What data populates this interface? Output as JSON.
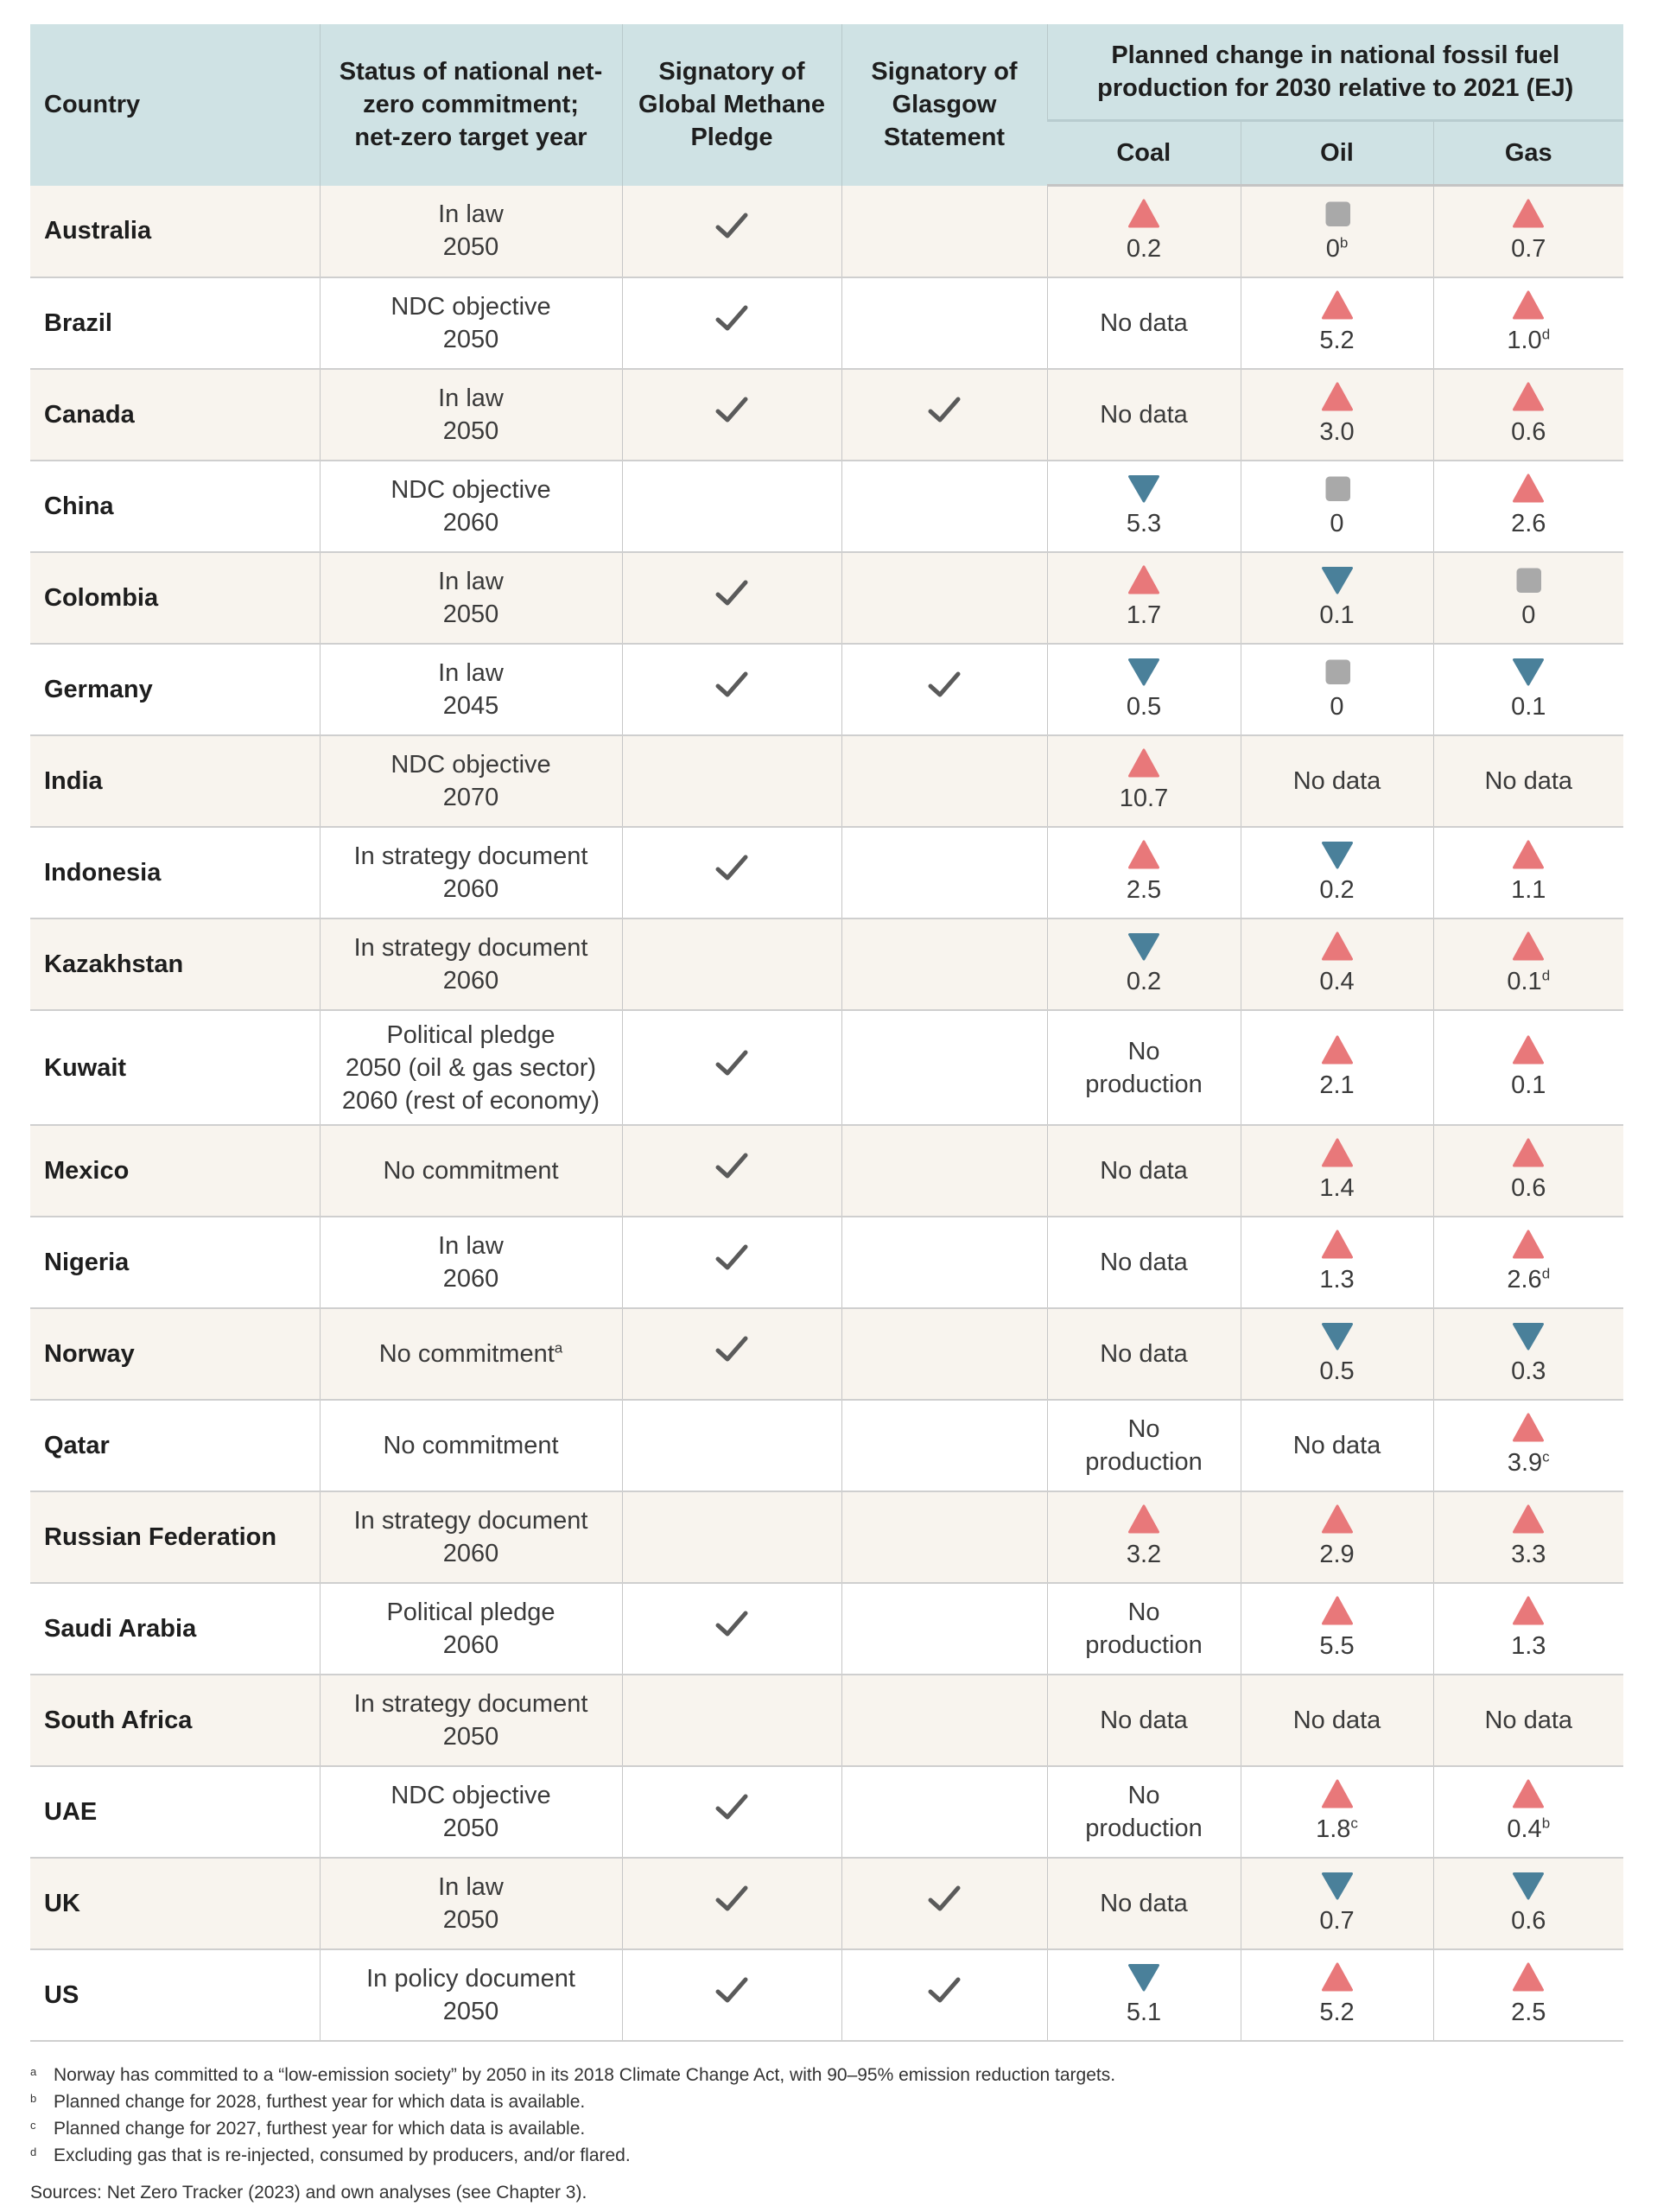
{
  "headers": {
    "country": "Country",
    "status": "Status of national net-zero commitment; net-zero target year",
    "methane": "Signatory of Global Methane Pledge",
    "glasgow": "Signatory of Glasgow Statement",
    "planned": "Planned change in national fossil fuel production for 2030 relative to 2021 (EJ)",
    "coal": "Coal",
    "oil": "Oil",
    "gas": "Gas"
  },
  "colors": {
    "increase": "#e8787a",
    "decrease": "#4a809a",
    "no_change": "#a9a9a9",
    "header_bg": "#cfe2e4",
    "alt_row_bg": "#f8f4ee"
  },
  "rows": [
    {
      "country": "Australia",
      "status": [
        "In law",
        "2050"
      ],
      "methane": true,
      "glasgow": false,
      "coal": {
        "dir": "up",
        "value": "0.2"
      },
      "oil": {
        "dir": "flat",
        "value": "0",
        "sup": "b"
      },
      "gas": {
        "dir": "up",
        "value": "0.7"
      }
    },
    {
      "country": "Brazil",
      "status": [
        "NDC objective",
        "2050"
      ],
      "methane": true,
      "glasgow": false,
      "coal": {
        "text": "No data"
      },
      "oil": {
        "dir": "up",
        "value": "5.2"
      },
      "gas": {
        "dir": "up",
        "value": "1.0",
        "sup": "d"
      }
    },
    {
      "country": "Canada",
      "status": [
        "In law",
        "2050"
      ],
      "methane": true,
      "glasgow": true,
      "coal": {
        "text": "No data"
      },
      "oil": {
        "dir": "up",
        "value": "3.0"
      },
      "gas": {
        "dir": "up",
        "value": "0.6"
      }
    },
    {
      "country": "China",
      "status": [
        "NDC objective",
        "2060"
      ],
      "methane": false,
      "glasgow": false,
      "coal": {
        "dir": "down",
        "value": "5.3"
      },
      "oil": {
        "dir": "flat",
        "value": "0"
      },
      "gas": {
        "dir": "up",
        "value": "2.6"
      }
    },
    {
      "country": "Colombia",
      "status": [
        "In law",
        "2050"
      ],
      "methane": true,
      "glasgow": false,
      "coal": {
        "dir": "up",
        "value": "1.7"
      },
      "oil": {
        "dir": "down",
        "value": "0.1"
      },
      "gas": {
        "dir": "flat",
        "value": "0"
      }
    },
    {
      "country": "Germany",
      "status": [
        "In law",
        "2045"
      ],
      "methane": true,
      "glasgow": true,
      "coal": {
        "dir": "down",
        "value": "0.5"
      },
      "oil": {
        "dir": "flat",
        "value": "0"
      },
      "gas": {
        "dir": "down",
        "value": "0.1"
      }
    },
    {
      "country": "India",
      "status": [
        "NDC objective",
        "2070"
      ],
      "methane": false,
      "glasgow": false,
      "coal": {
        "dir": "up",
        "value": "10.7"
      },
      "oil": {
        "text": "No data"
      },
      "gas": {
        "text": "No data"
      }
    },
    {
      "country": "Indonesia",
      "status": [
        "In strategy document",
        "2060"
      ],
      "methane": true,
      "glasgow": false,
      "coal": {
        "dir": "up",
        "value": "2.5"
      },
      "oil": {
        "dir": "down",
        "value": "0.2"
      },
      "gas": {
        "dir": "up",
        "value": "1.1"
      }
    },
    {
      "country": "Kazakhstan",
      "status": [
        "In strategy document",
        "2060"
      ],
      "methane": false,
      "glasgow": false,
      "coal": {
        "dir": "down",
        "value": "0.2"
      },
      "oil": {
        "dir": "up",
        "value": "0.4"
      },
      "gas": {
        "dir": "up",
        "value": "0.1",
        "sup": "d"
      }
    },
    {
      "country": "Kuwait",
      "status": [
        "Political pledge",
        "2050 (oil & gas sector)",
        "2060 (rest of economy)"
      ],
      "methane": true,
      "glasgow": false,
      "coal": {
        "text": "No production"
      },
      "oil": {
        "dir": "up",
        "value": "2.1"
      },
      "gas": {
        "dir": "up",
        "value": "0.1"
      }
    },
    {
      "country": "Mexico",
      "status": [
        "No commitment"
      ],
      "methane": true,
      "glasgow": false,
      "coal": {
        "text": "No data"
      },
      "oil": {
        "dir": "up",
        "value": "1.4"
      },
      "gas": {
        "dir": "up",
        "value": "0.6"
      }
    },
    {
      "country": "Nigeria",
      "status": [
        "In law",
        "2060"
      ],
      "methane": true,
      "glasgow": false,
      "coal": {
        "text": "No data"
      },
      "oil": {
        "dir": "up",
        "value": "1.3"
      },
      "gas": {
        "dir": "up",
        "value": "2.6",
        "sup": "d"
      }
    },
    {
      "country": "Norway",
      "status": [
        "No commitment"
      ],
      "status_sup": "a",
      "methane": true,
      "glasgow": false,
      "coal": {
        "text": "No data"
      },
      "oil": {
        "dir": "down",
        "value": "0.5"
      },
      "gas": {
        "dir": "down",
        "value": "0.3"
      }
    },
    {
      "country": "Qatar",
      "status": [
        "No commitment"
      ],
      "methane": false,
      "glasgow": false,
      "coal": {
        "text": "No production"
      },
      "oil": {
        "text": "No data"
      },
      "gas": {
        "dir": "up",
        "value": "3.9",
        "sup": "c"
      }
    },
    {
      "country": "Russian Federation",
      "status": [
        "In strategy document",
        "2060"
      ],
      "methane": false,
      "glasgow": false,
      "coal": {
        "dir": "up",
        "value": "3.2"
      },
      "oil": {
        "dir": "up",
        "value": "2.9"
      },
      "gas": {
        "dir": "up",
        "value": "3.3"
      }
    },
    {
      "country": "Saudi Arabia",
      "status": [
        "Political pledge",
        "2060"
      ],
      "methane": true,
      "glasgow": false,
      "coal": {
        "text": "No production"
      },
      "oil": {
        "dir": "up",
        "value": "5.5"
      },
      "gas": {
        "dir": "up",
        "value": "1.3"
      }
    },
    {
      "country": "South Africa",
      "status": [
        "In strategy document",
        "2050"
      ],
      "methane": false,
      "glasgow": false,
      "coal": {
        "text": "No data"
      },
      "oil": {
        "text": "No data"
      },
      "gas": {
        "text": "No data"
      }
    },
    {
      "country": "UAE",
      "status": [
        "NDC objective",
        "2050"
      ],
      "methane": true,
      "glasgow": false,
      "coal": {
        "text": "No production"
      },
      "oil": {
        "dir": "up",
        "value": "1.8",
        "sup": "c"
      },
      "gas": {
        "dir": "up",
        "value": "0.4",
        "sup": "b"
      }
    },
    {
      "country": "UK",
      "status": [
        "In law",
        "2050"
      ],
      "methane": true,
      "glasgow": true,
      "coal": {
        "text": "No data"
      },
      "oil": {
        "dir": "down",
        "value": "0.7"
      },
      "gas": {
        "dir": "down",
        "value": "0.6"
      }
    },
    {
      "country": "US",
      "status": [
        "In policy document",
        "2050"
      ],
      "methane": true,
      "glasgow": true,
      "coal": {
        "dir": "down",
        "value": "5.1"
      },
      "oil": {
        "dir": "up",
        "value": "5.2"
      },
      "gas": {
        "dir": "up",
        "value": "2.5"
      }
    }
  ],
  "footnotes": [
    {
      "letter": "a",
      "text": "Norway has committed to a “low-emission society” by 2050 in its 2018 Climate Change Act, with 90–95% emission reduction targets."
    },
    {
      "letter": "b",
      "text": "Planned change for 2028, furthest year for which data is available."
    },
    {
      "letter": "c",
      "text": "Planned change for 2027, furthest year for which data is available."
    },
    {
      "letter": "d",
      "text": "Excluding gas that is re-injected, consumed by producers, and/or flared."
    }
  ],
  "sources": "Sources: Net Zero Tracker (2023) and own analyses (see Chapter 3)."
}
